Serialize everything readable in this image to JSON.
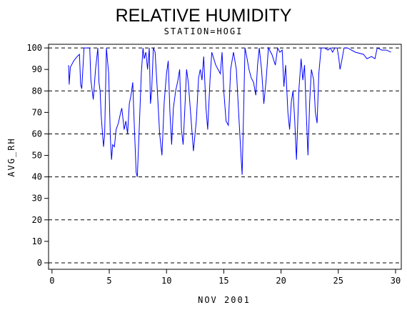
{
  "chart_data": {
    "type": "line",
    "title": "RELATIVE HUMIDITY",
    "subtitle": "STATION=HOGI",
    "x_label": "NOV 2001",
    "y_label": "AVG_RH",
    "color": "#0000ff",
    "x": [
      1.45,
      1.5,
      1.6,
      1.9,
      2.2,
      2.4,
      2.5,
      2.6,
      2.8,
      3.0,
      3.3,
      3.4,
      3.6,
      3.8,
      4.0,
      4.1,
      4.2,
      4.3,
      4.5,
      4.6,
      4.75,
      4.85,
      4.95,
      5.1,
      5.2,
      5.3,
      5.45,
      5.6,
      5.8,
      6.0,
      6.1,
      6.3,
      6.45,
      6.6,
      6.75,
      6.9,
      7.05,
      7.2,
      7.35,
      7.45,
      7.6,
      7.8,
      7.95,
      8.05,
      8.2,
      8.35,
      8.5,
      8.6,
      8.7,
      8.85,
      9.0,
      9.2,
      9.4,
      9.6,
      9.8,
      10.0,
      10.15,
      10.3,
      10.45,
      10.6,
      10.8,
      11.0,
      11.15,
      11.3,
      11.45,
      11.6,
      11.75,
      11.9,
      12.1,
      12.35,
      12.6,
      12.8,
      12.95,
      13.1,
      13.25,
      13.45,
      13.6,
      13.8,
      13.95,
      14.3,
      14.7,
      14.85,
      15.0,
      15.2,
      15.4,
      15.6,
      15.85,
      16.1,
      16.3,
      16.5,
      16.6,
      16.75,
      16.85,
      17.0,
      17.2,
      17.4,
      17.6,
      17.8,
      17.95,
      18.1,
      18.3,
      18.5,
      18.7,
      18.9,
      19.2,
      19.5,
      19.7,
      19.9,
      20.1,
      20.25,
      20.4,
      20.6,
      20.75,
      20.9,
      21.05,
      21.2,
      21.35,
      21.55,
      21.75,
      21.9,
      22.05,
      22.2,
      22.35,
      22.5,
      22.65,
      22.85,
      23.0,
      23.15,
      23.3,
      23.5,
      23.8,
      24.1,
      24.3,
      24.5,
      24.7,
      24.9,
      25.05,
      25.15,
      25.3,
      25.5,
      25.8,
      26.5,
      27.2,
      27.5,
      27.9,
      28.2,
      28.4,
      28.8,
      29.2,
      29.6
    ],
    "values": [
      92,
      83,
      91,
      94,
      96,
      97,
      83,
      81,
      100,
      100,
      100,
      85,
      76,
      90,
      100,
      84,
      80,
      68,
      54,
      60,
      100,
      94,
      88,
      58,
      48,
      55,
      54,
      62,
      65,
      70,
      72,
      62,
      66,
      60,
      74,
      78,
      84,
      62,
      42,
      40,
      60,
      88,
      100,
      95,
      98,
      90,
      100,
      74,
      80,
      100,
      98,
      80,
      60,
      50,
      75,
      88,
      94,
      70,
      55,
      72,
      80,
      85,
      90,
      62,
      55,
      72,
      90,
      84,
      70,
      52,
      66,
      86,
      90,
      85,
      96,
      72,
      62,
      85,
      98,
      92,
      88,
      98,
      80,
      66,
      64,
      90,
      98,
      90,
      70,
      50,
      41,
      75,
      100,
      96,
      90,
      86,
      84,
      78,
      92,
      100,
      90,
      74,
      85,
      100,
      97,
      92,
      100,
      98,
      99,
      82,
      92,
      70,
      62,
      75,
      80,
      66,
      48,
      80,
      95,
      85,
      92,
      70,
      50,
      75,
      90,
      85,
      70,
      65,
      88,
      100,
      100,
      99,
      100,
      98,
      100,
      100,
      95,
      90,
      94,
      100,
      100,
      98,
      97,
      95,
      96,
      95,
      100,
      99,
      99,
      98
    ],
    "xlim": [
      -0.3,
      30.5
    ],
    "ylim": [
      -3,
      101.7
    ],
    "xticks": [
      0,
      5,
      10,
      15,
      20,
      25,
      30
    ],
    "yticks": [
      0,
      10,
      20,
      30,
      40,
      50,
      60,
      70,
      80,
      90,
      100
    ],
    "grid_lines": [
      0,
      20,
      40,
      60,
      80,
      100
    ]
  }
}
